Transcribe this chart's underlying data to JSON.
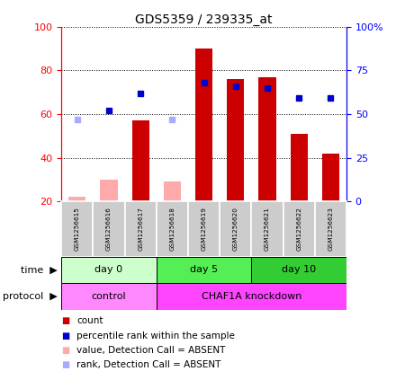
{
  "title": "GDS5359 / 239335_at",
  "samples": [
    "GSM1256615",
    "GSM1256616",
    "GSM1256617",
    "GSM1256618",
    "GSM1256619",
    "GSM1256620",
    "GSM1256621",
    "GSM1256622",
    "GSM1256623"
  ],
  "bar_values": [
    22,
    30,
    57,
    29,
    90,
    76,
    77,
    51,
    42
  ],
  "bar_absent": [
    true,
    true,
    false,
    true,
    false,
    false,
    false,
    false,
    false
  ],
  "rank_values": [
    47,
    52,
    62,
    47,
    68,
    66,
    65,
    59,
    59
  ],
  "rank_absent": [
    true,
    false,
    false,
    true,
    false,
    false,
    false,
    false,
    false
  ],
  "bar_color": "#cc0000",
  "bar_color_absent": "#ffaaaa",
  "rank_color": "#0000cc",
  "rank_color_absent": "#aaaaff",
  "ylim_left": [
    20,
    100
  ],
  "ylim_right": [
    0,
    100
  ],
  "yticks_left": [
    20,
    40,
    60,
    80,
    100
  ],
  "yticks_right": [
    0,
    25,
    50,
    75,
    100
  ],
  "ytick_labels_right": [
    "0",
    "25",
    "50",
    "75",
    "100%"
  ],
  "time_groups": [
    {
      "label": "day 0",
      "start": 0,
      "end": 3,
      "color": "#ccffcc"
    },
    {
      "label": "day 5",
      "start": 3,
      "end": 6,
      "color": "#55ee55"
    },
    {
      "label": "day 10",
      "start": 6,
      "end": 9,
      "color": "#33cc33"
    }
  ],
  "protocol_groups": [
    {
      "label": "control",
      "start": 0,
      "end": 3,
      "color": "#ff88ff"
    },
    {
      "label": "CHAF1A knockdown",
      "start": 3,
      "end": 9,
      "color": "#ff44ff"
    }
  ],
  "time_label": "time",
  "protocol_label": "protocol",
  "legend_items": [
    {
      "color": "#cc0000",
      "label": "count"
    },
    {
      "color": "#0000cc",
      "label": "percentile rank within the sample"
    },
    {
      "color": "#ffaaaa",
      "label": "value, Detection Call = ABSENT"
    },
    {
      "color": "#aaaaff",
      "label": "rank, Detection Call = ABSENT"
    }
  ]
}
